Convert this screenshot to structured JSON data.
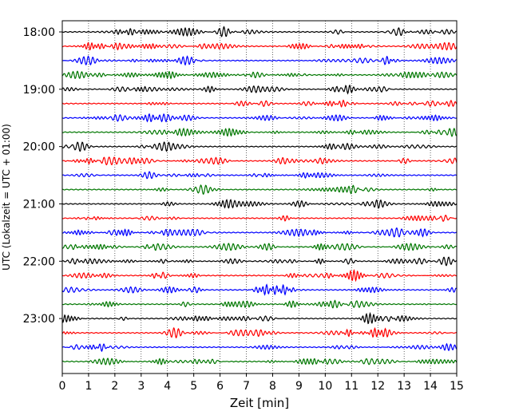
{
  "chart_data": {
    "type": "line",
    "title": "",
    "xlabel": "Zeit  [min]",
    "ylabel": "UTC (Lokalzeit = UTC + 01:00)",
    "xlim": [
      0,
      15
    ],
    "x_ticks": [
      0,
      1,
      2,
      3,
      4,
      5,
      6,
      7,
      8,
      9,
      10,
      11,
      12,
      13,
      14,
      15
    ],
    "y_tick_labels": [
      "18:00",
      "19:00",
      "20:00",
      "21:00",
      "22:00",
      "23:00"
    ],
    "grid": "vertical dotted",
    "trace_start_times": [
      "18:00",
      "18:15",
      "18:30",
      "18:45",
      "19:00",
      "19:15",
      "19:30",
      "19:45",
      "20:00",
      "20:15",
      "20:30",
      "20:45",
      "21:00",
      "21:15",
      "21:30",
      "21:45",
      "22:00",
      "22:15",
      "22:30",
      "22:45",
      "23:00",
      "23:15",
      "23:30",
      "23:45"
    ],
    "trace_colors": [
      "#000000",
      "#ff0000",
      "#0000ff",
      "#007700"
    ],
    "series_description": "Seismogram traces, one per 15-minute segment, cycling colors black, red, blue, green"
  }
}
